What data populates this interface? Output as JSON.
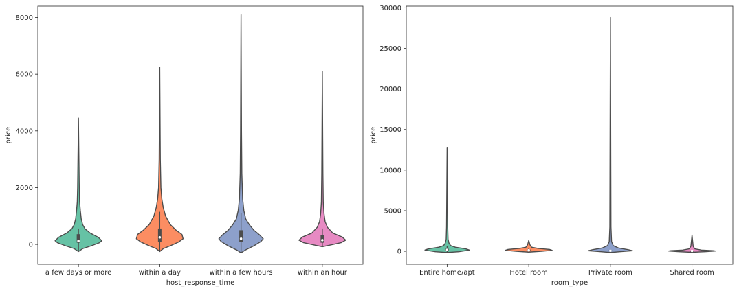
{
  "chart_data": [
    {
      "type": "violin",
      "title": "",
      "xlabel": "host_response_time",
      "ylabel": "price",
      "ylim": [
        -700,
        8400
      ],
      "yticks": [
        0,
        2000,
        4000,
        6000,
        8000
      ],
      "grid": false,
      "legend": "none",
      "categories": [
        "a few days or more",
        "within a day",
        "within a few hours",
        "within an hour"
      ],
      "colors": [
        "#66c2a5",
        "#fc8d62",
        "#8da0cb",
        "#e78ac3"
      ],
      "violins": [
        {
          "min": -250,
          "max": 4450,
          "q1": 60,
          "median": 120,
          "q3": 360,
          "whisker_high": 560,
          "profile": [
            [
              -250,
              0.0
            ],
            [
              -150,
              0.18
            ],
            [
              -50,
              0.55
            ],
            [
              60,
              0.9
            ],
            [
              130,
              1.0
            ],
            [
              250,
              0.85
            ],
            [
              400,
              0.5
            ],
            [
              550,
              0.28
            ],
            [
              700,
              0.18
            ],
            [
              900,
              0.12
            ],
            [
              1200,
              0.08
            ],
            [
              1500,
              0.05
            ],
            [
              2000,
              0.035
            ],
            [
              3000,
              0.02
            ],
            [
              4450,
              0.0
            ]
          ]
        },
        {
          "min": -250,
          "max": 6250,
          "q1": 80,
          "median": 250,
          "q3": 560,
          "whisker_high": 1150,
          "profile": [
            [
              -250,
              0.0
            ],
            [
              -150,
              0.15
            ],
            [
              -50,
              0.45
            ],
            [
              80,
              0.8
            ],
            [
              200,
              1.0
            ],
            [
              350,
              0.95
            ],
            [
              500,
              0.7
            ],
            [
              700,
              0.45
            ],
            [
              1000,
              0.25
            ],
            [
              1300,
              0.15
            ],
            [
              1600,
              0.09
            ],
            [
              2000,
              0.05
            ],
            [
              3000,
              0.025
            ],
            [
              6250,
              0.0
            ]
          ]
        },
        {
          "min": -300,
          "max": 8100,
          "q1": 80,
          "median": 200,
          "q3": 500,
          "whisker_high": 1100,
          "profile": [
            [
              -300,
              0.0
            ],
            [
              -200,
              0.18
            ],
            [
              -50,
              0.55
            ],
            [
              100,
              0.85
            ],
            [
              200,
              0.95
            ],
            [
              330,
              0.8
            ],
            [
              500,
              0.55
            ],
            [
              700,
              0.35
            ],
            [
              900,
              0.2
            ],
            [
              1200,
              0.12
            ],
            [
              1600,
              0.07
            ],
            [
              2500,
              0.035
            ],
            [
              4000,
              0.02
            ],
            [
              8100,
              0.0
            ]
          ]
        },
        {
          "min": -80,
          "max": 6100,
          "q1": 60,
          "median": 150,
          "q3": 320,
          "whisker_high": 560,
          "profile": [
            [
              -80,
              0.0
            ],
            [
              -20,
              0.35
            ],
            [
              60,
              0.8
            ],
            [
              150,
              1.0
            ],
            [
              260,
              0.85
            ],
            [
              400,
              0.45
            ],
            [
              600,
              0.22
            ],
            [
              800,
              0.12
            ],
            [
              1100,
              0.07
            ],
            [
              1500,
              0.04
            ],
            [
              2500,
              0.025
            ],
            [
              6100,
              0.0
            ]
          ]
        }
      ]
    },
    {
      "type": "violin",
      "title": "",
      "xlabel": "room_type",
      "ylabel": "price",
      "ylim": [
        -1600,
        30200
      ],
      "yticks": [
        0,
        5000,
        10000,
        15000,
        20000,
        25000,
        30000
      ],
      "grid": false,
      "legend": "none",
      "categories": [
        "Entire home/apt",
        "Hotel room",
        "Private room",
        "Shared room"
      ],
      "colors": [
        "#66c2a5",
        "#fc8d62",
        "#8da0cb",
        "#e78ac3"
      ],
      "violins": [
        {
          "min": -150,
          "max": 12800,
          "q1": 90,
          "median": 160,
          "q3": 300,
          "whisker_high": 600,
          "profile": [
            [
              -150,
              0.0
            ],
            [
              -50,
              0.5
            ],
            [
              150,
              0.95
            ],
            [
              300,
              0.8
            ],
            [
              500,
              0.35
            ],
            [
              700,
              0.15
            ],
            [
              1000,
              0.08
            ],
            [
              1500,
              0.04
            ],
            [
              3000,
              0.025
            ],
            [
              12800,
              0.0
            ]
          ]
        },
        {
          "min": -100,
          "max": 1350,
          "q1": 60,
          "median": 120,
          "q3": 220,
          "whisker_high": 400,
          "profile": [
            [
              -100,
              0.0
            ],
            [
              0,
              0.55
            ],
            [
              120,
              1.0
            ],
            [
              220,
              0.9
            ],
            [
              350,
              0.4
            ],
            [
              500,
              0.12
            ],
            [
              800,
              0.05
            ],
            [
              1350,
              0.0
            ]
          ]
        },
        {
          "min": -150,
          "max": 28800,
          "q1": 40,
          "median": 70,
          "q3": 120,
          "whisker_high": 250,
          "profile": [
            [
              -150,
              0.0
            ],
            [
              -50,
              0.4
            ],
            [
              70,
              0.95
            ],
            [
              200,
              0.75
            ],
            [
              400,
              0.35
            ],
            [
              700,
              0.12
            ],
            [
              1200,
              0.05
            ],
            [
              3000,
              0.025
            ],
            [
              28800,
              0.0
            ]
          ]
        },
        {
          "min": -120,
          "max": 2000,
          "q1": 30,
          "median": 50,
          "q3": 90,
          "whisker_high": 150,
          "profile": [
            [
              -120,
              0.0
            ],
            [
              -50,
              0.55
            ],
            [
              30,
              1.0
            ],
            [
              80,
              0.9
            ],
            [
              150,
              0.4
            ],
            [
              300,
              0.12
            ],
            [
              600,
              0.05
            ],
            [
              2000,
              0.0
            ]
          ]
        }
      ]
    }
  ]
}
